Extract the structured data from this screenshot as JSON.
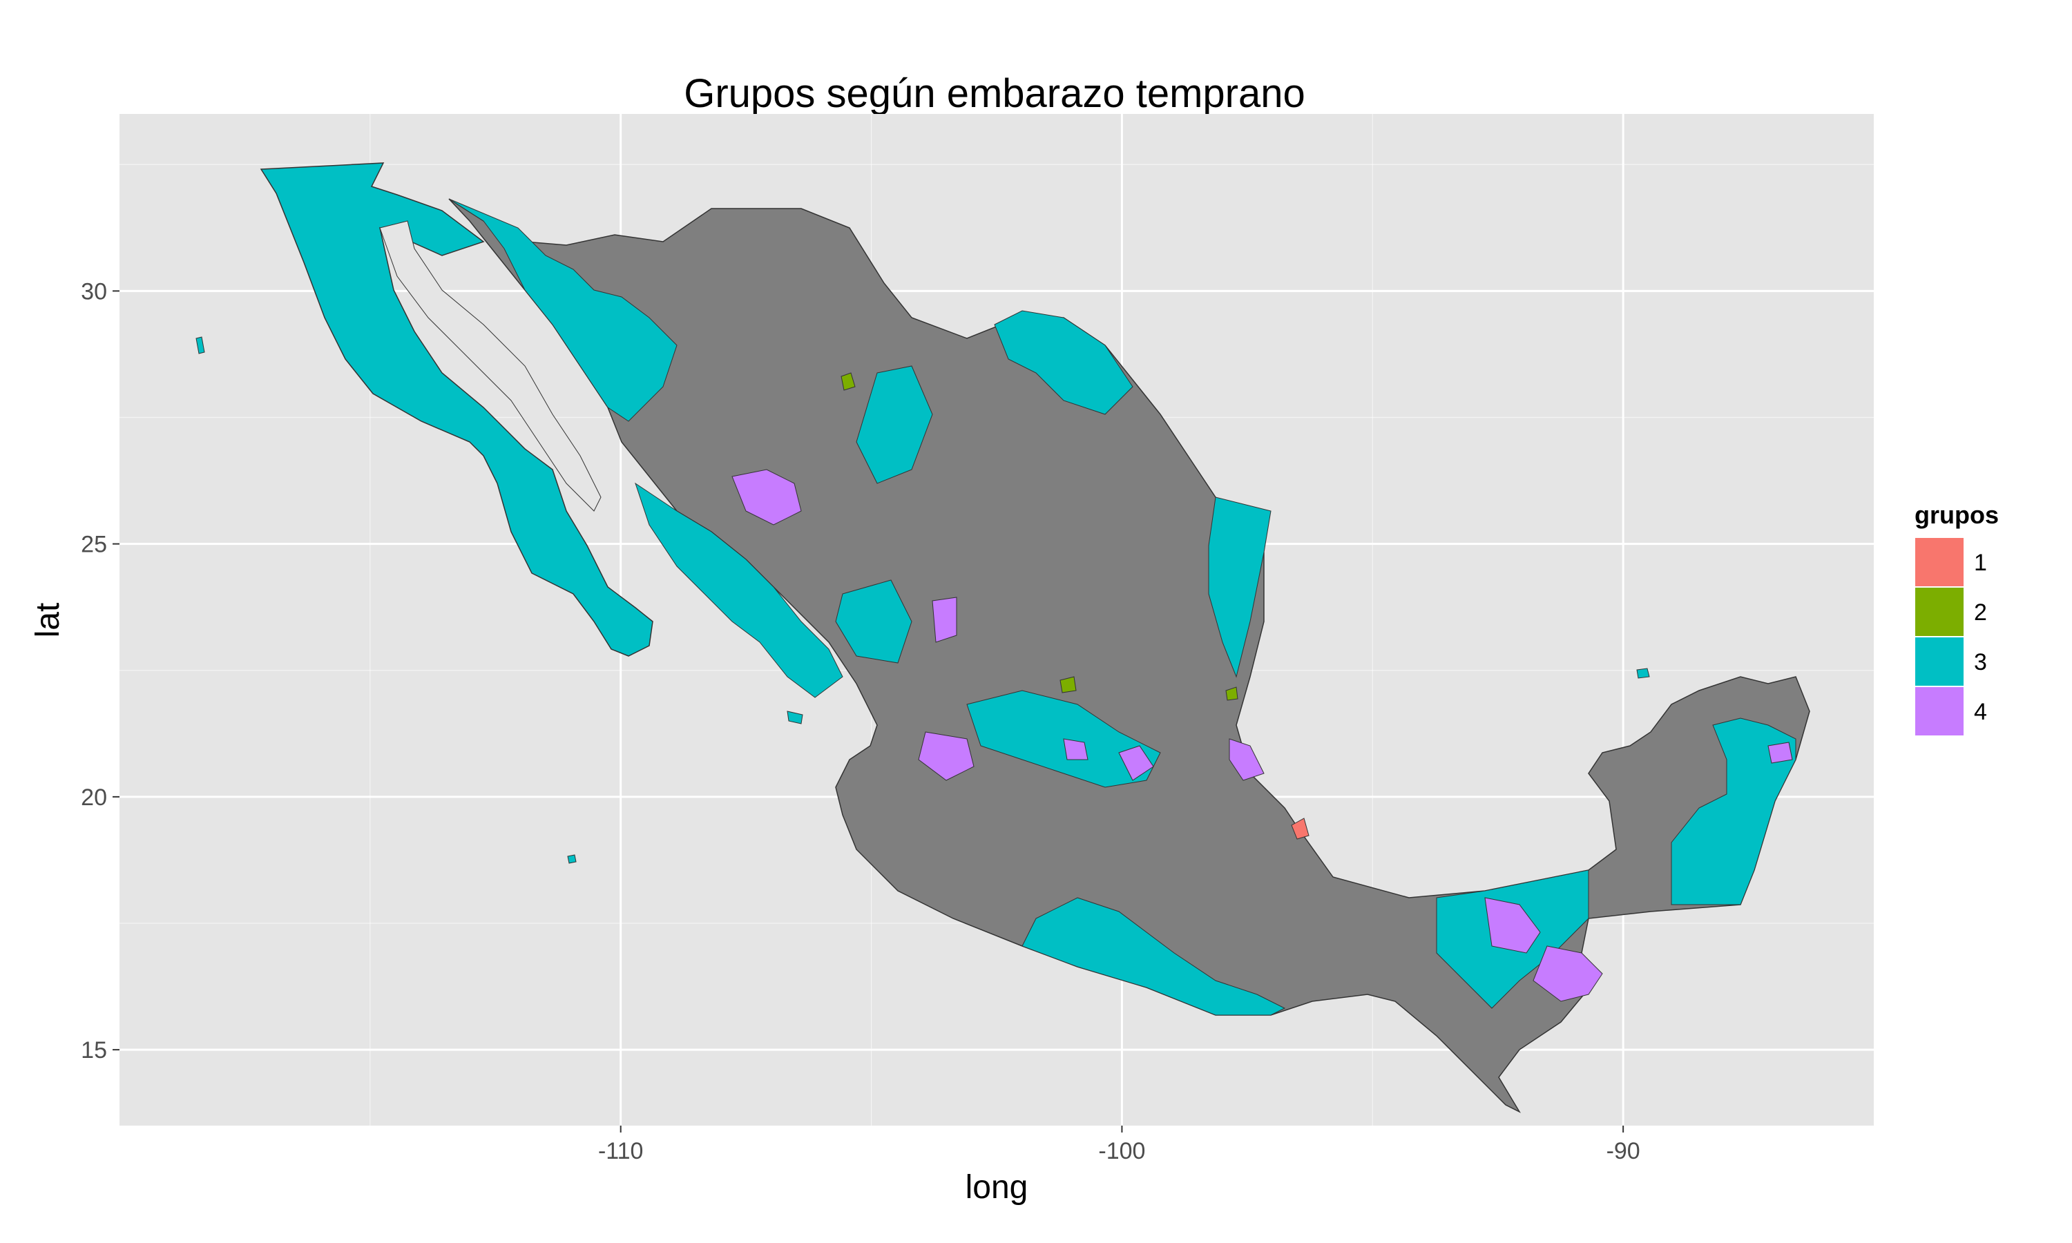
{
  "chart_data": {
    "type": "map",
    "title": "Grupos según embarazo temprano",
    "xlabel": "long",
    "ylabel": "lat",
    "xlim": [
      -120,
      -85
    ],
    "ylim": [
      13.5,
      33.5
    ],
    "x_ticks": [
      -110,
      -100,
      -90
    ],
    "y_ticks": [
      15,
      20,
      25,
      30
    ],
    "x_tick_labels": [
      "-110",
      "-100",
      "-90"
    ],
    "y_tick_labels": [
      "15",
      "20",
      "25",
      "30"
    ],
    "grid": true,
    "legend": {
      "title": "grupos",
      "placement": "right",
      "entries": [
        {
          "label": "1",
          "color": "#F8766D"
        },
        {
          "label": "2",
          "color": "#7CAE00"
        },
        {
          "label": "3",
          "color": "#00BFC4"
        },
        {
          "label": "4",
          "color": "#C77CFF"
        }
      ]
    },
    "na_color": "#7f7f7f",
    "background_color": "#e5e5e5",
    "grid_color": "#ffffff"
  }
}
